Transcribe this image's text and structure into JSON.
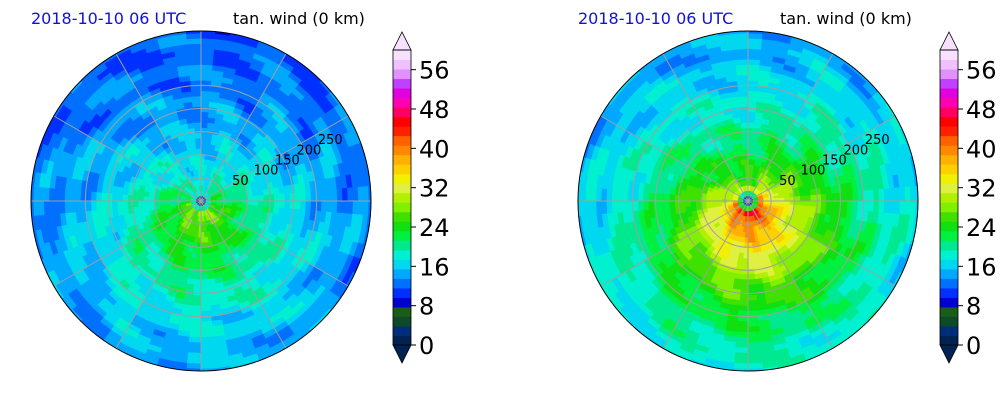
{
  "chart_data": [
    {
      "type": "heatmap",
      "projection": "polar",
      "title": "2018-10-10 06 UTC",
      "subtitle": "tan. wind (0 km)",
      "radial_ticks": [
        50,
        100,
        150,
        200,
        250
      ],
      "radial_max": 250,
      "grid": true,
      "colorbar": {
        "ticks": [
          "0",
          "8",
          "16",
          "24",
          "32",
          "40",
          "48",
          "56"
        ],
        "range": [
          0,
          60
        ],
        "extend": "both"
      },
      "field": {
        "peak_value": 34,
        "peak_radius": 18,
        "peak_azimuth_deg": 180,
        "eye_radius": 10,
        "decay_scale": 180,
        "outer_value": 9
      }
    },
    {
      "type": "heatmap",
      "projection": "polar",
      "title": "2018-10-10 06 UTC",
      "subtitle": "tan. wind (0 km)",
      "radial_ticks": [
        50,
        100,
        150,
        200,
        250
      ],
      "radial_max": 250,
      "grid": true,
      "colorbar": {
        "ticks": [
          "0",
          "8",
          "16",
          "24",
          "32",
          "40",
          "48",
          "56"
        ],
        "range": [
          0,
          60
        ],
        "extend": "both"
      },
      "field": {
        "peak_value": 50,
        "peak_radius": 22,
        "peak_azimuth_deg": 170,
        "eye_radius": 8,
        "decay_scale": 150,
        "outer_value": 11
      }
    }
  ],
  "colormap": [
    "#002255",
    "#002e7a",
    "#0c4a2a",
    "#1a5c1a",
    "#0000d0",
    "#0030ff",
    "#0070ff",
    "#00a8ff",
    "#00d8f0",
    "#00f0d0",
    "#00e890",
    "#00f040",
    "#10e010",
    "#40e000",
    "#80f000",
    "#b0f000",
    "#e0f040",
    "#f0f000",
    "#ffd000",
    "#ffb000",
    "#ff8800",
    "#ff6000",
    "#ff2000",
    "#ff0000",
    "#ff0060",
    "#ff00b0",
    "#e000e0",
    "#c040ff",
    "#e090ff",
    "#f0c0ff",
    "#f8e0ff"
  ]
}
